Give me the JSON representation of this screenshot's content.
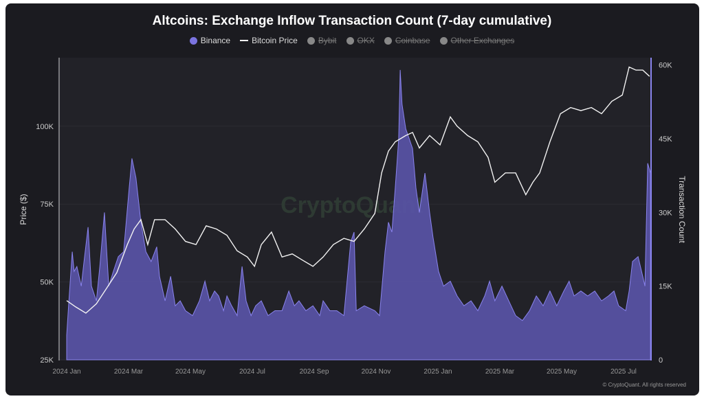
{
  "chart_data": {
    "type": "area",
    "title": "Altcoins: Exchange Inflow Transaction Count (7-day cumulative)",
    "x_units": "months since 2024 Jan",
    "legend": [
      {
        "name": "Binance",
        "color": "#7b74e0",
        "active": true
      },
      {
        "name": "Bitcoin Price",
        "color": "#ffffff",
        "active": true
      },
      {
        "name": "Bybit",
        "color": "#888888",
        "active": false
      },
      {
        "name": "OKX",
        "color": "#888888",
        "active": false
      },
      {
        "name": "Coinbase",
        "color": "#888888",
        "active": false
      },
      {
        "name": "Other Exchanges",
        "color": "#888888",
        "active": false
      }
    ],
    "legend_position": "top-center",
    "ylabel_left": "Price ($)",
    "ylabel_right": "Transaction Count",
    "ylim_left": [
      25000,
      122000
    ],
    "ylim_right": [
      0,
      61500
    ],
    "yticks_left": [
      "25K",
      "50K",
      "75K",
      "100K"
    ],
    "yticks_left_values": [
      25000,
      50000,
      75000,
      100000
    ],
    "yticks_right": [
      "0",
      "15K",
      "30K",
      "45K",
      "60K"
    ],
    "yticks_right_values": [
      0,
      15000,
      30000,
      45000,
      60000
    ],
    "xticks": [
      "2024 Jan",
      "2024 Mar",
      "2024 May",
      "2024 Jul",
      "2024 Sep",
      "2024 Nov",
      "2025 Jan",
      "2025 Mar",
      "2025 May",
      "2025 Jul"
    ],
    "xticks_values": [
      0,
      2,
      4,
      6,
      8,
      10,
      12,
      14,
      16,
      18
    ],
    "xlim": [
      0,
      18.9
    ],
    "series": [
      {
        "name": "Binance",
        "axis": "right",
        "type": "area",
        "x": [
          0,
          0.07,
          0.18,
          0.24,
          0.33,
          0.47,
          0.56,
          0.69,
          0.8,
          0.96,
          1.07,
          1.22,
          1.36,
          1.51,
          1.67,
          1.84,
          2.02,
          2.11,
          2.24,
          2.4,
          2.56,
          2.73,
          2.91,
          3,
          3.18,
          3.36,
          3.51,
          3.67,
          3.84,
          4.07,
          4.29,
          4.47,
          4.62,
          4.78,
          4.91,
          5.07,
          5.18,
          5.33,
          5.51,
          5.67,
          5.8,
          5.96,
          6.11,
          6.29,
          6.51,
          6.73,
          6.96,
          7.18,
          7.36,
          7.51,
          7.73,
          7.96,
          8.18,
          8.29,
          8.51,
          8.73,
          8.96,
          9.18,
          9.29,
          9.36,
          9.62,
          9.96,
          10.11,
          10.29,
          10.4,
          10.51,
          10.62,
          10.73,
          10.78,
          10.84,
          10.96,
          11.07,
          11.18,
          11.29,
          11.4,
          11.58,
          11.73,
          11.84,
          12.02,
          12.18,
          12.4,
          12.62,
          12.84,
          13.07,
          13.29,
          13.51,
          13.67,
          13.84,
          14.07,
          14.29,
          14.51,
          14.73,
          14.96,
          15.18,
          15.4,
          15.62,
          15.84,
          16.07,
          16.24,
          16.4,
          16.62,
          16.84,
          17.07,
          17.29,
          17.51,
          17.69,
          17.84,
          18.07,
          18.18,
          18.29,
          18.47,
          18.62,
          18.69,
          18.78,
          18.87
        ],
        "values": [
          5,
          12,
          22,
          18,
          19,
          15,
          20,
          27,
          15,
          12,
          19,
          30,
          15,
          18,
          21,
          22,
          35,
          41,
          37,
          28,
          22,
          20,
          23,
          17,
          12,
          17,
          11,
          12,
          10,
          9,
          12,
          16,
          12,
          14,
          13,
          10,
          13,
          11,
          9,
          19,
          12,
          9,
          11,
          12,
          9,
          10,
          10,
          14,
          11,
          12,
          10,
          11,
          9,
          12,
          10,
          10,
          9,
          24,
          26,
          10,
          11,
          10,
          9,
          22,
          28,
          26,
          35,
          45,
          59,
          52,
          47,
          45,
          43,
          35,
          30,
          38,
          30,
          25,
          18,
          15,
          16,
          13,
          11,
          12,
          10,
          13,
          16,
          12,
          15,
          12,
          9,
          8,
          10,
          13,
          11,
          14,
          11,
          14,
          16,
          13,
          14,
          13,
          14,
          12,
          13,
          14,
          11,
          10,
          14,
          20,
          21,
          17,
          15,
          40,
          38
        ],
        "value_scale": 1000
      },
      {
        "name": "Bitcoin Price",
        "axis": "left",
        "type": "line",
        "x": [
          0,
          0.29,
          0.62,
          0.96,
          1.29,
          1.62,
          1.96,
          2.18,
          2.4,
          2.62,
          2.84,
          3.18,
          3.51,
          3.84,
          4.18,
          4.51,
          4.84,
          5.18,
          5.51,
          5.84,
          6.07,
          6.29,
          6.62,
          6.96,
          7.29,
          7.62,
          7.96,
          8.29,
          8.62,
          8.96,
          9.29,
          9.62,
          9.96,
          10.18,
          10.4,
          10.62,
          10.96,
          11.18,
          11.4,
          11.73,
          12.07,
          12.4,
          12.62,
          12.96,
          13.29,
          13.62,
          13.84,
          14.18,
          14.51,
          14.84,
          15.07,
          15.29,
          15.62,
          15.96,
          16.29,
          16.62,
          16.96,
          17.29,
          17.62,
          17.96,
          18.18,
          18.4,
          18.62,
          18.84
        ],
        "values": [
          44,
          42,
          40,
          43,
          48,
          53,
          62,
          67,
          70,
          62,
          70,
          70,
          67,
          63,
          62,
          68,
          67,
          65,
          60,
          58,
          55,
          62,
          66,
          58,
          59,
          57,
          55,
          58,
          62,
          64,
          63,
          67,
          72,
          85,
          92,
          95,
          97,
          98,
          93,
          97,
          94,
          103,
          100,
          97,
          95,
          90,
          82,
          85,
          85,
          78,
          82,
          85,
          95,
          104,
          106,
          105,
          106,
          104,
          108,
          110,
          119,
          118,
          118,
          116
        ],
        "value_scale": 1000
      }
    ],
    "watermark": "CryptoQuant",
    "copyright": "© CryptoQuant. All rights reserved"
  }
}
